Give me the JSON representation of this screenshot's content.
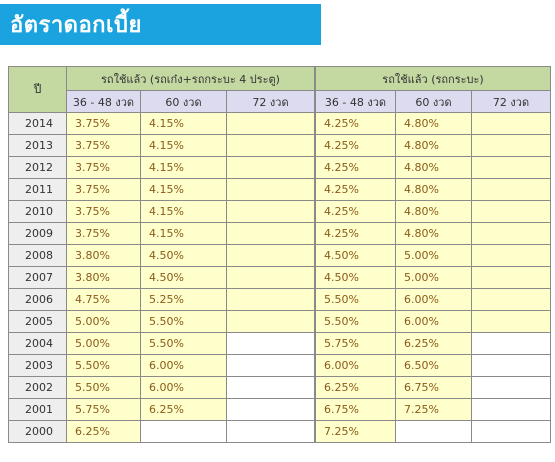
{
  "title": "อัตราดอกเบี้ย",
  "table": {
    "year_header": "ปี",
    "group_a": "รถใช้แล้ว (รถเก๋ง+รถกระบะ 4 ประตู)",
    "group_b": "รถใช้แล้ว (รถกระบะ)",
    "terms": [
      "36 - 48 งวด",
      "60 งวด",
      "72 งวด"
    ],
    "rows": [
      {
        "year": "2014",
        "a": [
          "3.75%",
          "4.15%",
          ""
        ],
        "b": [
          "4.25%",
          "4.80%",
          ""
        ]
      },
      {
        "year": "2013",
        "a": [
          "3.75%",
          "4.15%",
          ""
        ],
        "b": [
          "4.25%",
          "4.80%",
          ""
        ]
      },
      {
        "year": "2012",
        "a": [
          "3.75%",
          "4.15%",
          ""
        ],
        "b": [
          "4.25%",
          "4.80%",
          ""
        ]
      },
      {
        "year": "2011",
        "a": [
          "3.75%",
          "4.15%",
          ""
        ],
        "b": [
          "4.25%",
          "4.80%",
          ""
        ]
      },
      {
        "year": "2010",
        "a": [
          "3.75%",
          "4.15%",
          ""
        ],
        "b": [
          "4.25%",
          "4.80%",
          ""
        ]
      },
      {
        "year": "2009",
        "a": [
          "3.75%",
          "4.15%",
          ""
        ],
        "b": [
          "4.25%",
          "4.80%",
          ""
        ]
      },
      {
        "year": "2008",
        "a": [
          "3.80%",
          "4.50%",
          ""
        ],
        "b": [
          "4.50%",
          "5.00%",
          ""
        ]
      },
      {
        "year": "2007",
        "a": [
          "3.80%",
          "4.50%",
          ""
        ],
        "b": [
          "4.50%",
          "5.00%",
          ""
        ]
      },
      {
        "year": "2006",
        "a": [
          "4.75%",
          "5.25%",
          ""
        ],
        "b": [
          "5.50%",
          "6.00%",
          ""
        ]
      },
      {
        "year": "2005",
        "a": [
          "5.00%",
          "5.50%",
          ""
        ],
        "b": [
          "5.50%",
          "6.00%",
          ""
        ]
      },
      {
        "year": "2004",
        "a": [
          "5.00%",
          "5.50%",
          null
        ],
        "b": [
          "5.75%",
          "6.25%",
          null
        ]
      },
      {
        "year": "2003",
        "a": [
          "5.50%",
          "6.00%",
          null
        ],
        "b": [
          "6.00%",
          "6.50%",
          null
        ]
      },
      {
        "year": "2002",
        "a": [
          "5.50%",
          "6.00%",
          null
        ],
        "b": [
          "6.25%",
          "6.75%",
          null
        ]
      },
      {
        "year": "2001",
        "a": [
          "5.75%",
          "6.25%",
          null
        ],
        "b": [
          "6.75%",
          "7.25%",
          null
        ]
      },
      {
        "year": "2000",
        "a": [
          "6.25%",
          null,
          null
        ],
        "b": [
          "7.25%",
          null,
          null
        ]
      }
    ]
  }
}
